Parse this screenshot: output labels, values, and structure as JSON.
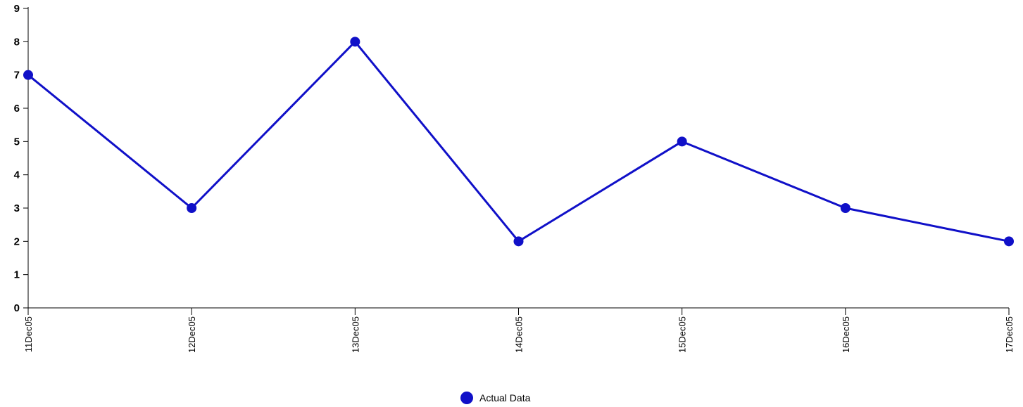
{
  "chart_data": {
    "type": "line",
    "x": [
      "11Dec05",
      "12Dec05",
      "13Dec05",
      "14Dec05",
      "15Dec05",
      "16Dec05",
      "17Dec05"
    ],
    "series": [
      {
        "name": "Actual Data",
        "values": [
          7,
          3,
          8,
          2,
          5,
          3,
          2
        ],
        "color": "#1010c8"
      }
    ],
    "ylim": [
      0,
      9
    ],
    "yticks": [
      0,
      1,
      2,
      3,
      4,
      5,
      6,
      7,
      8,
      9
    ],
    "grid": false,
    "legend": "bottom-center"
  }
}
